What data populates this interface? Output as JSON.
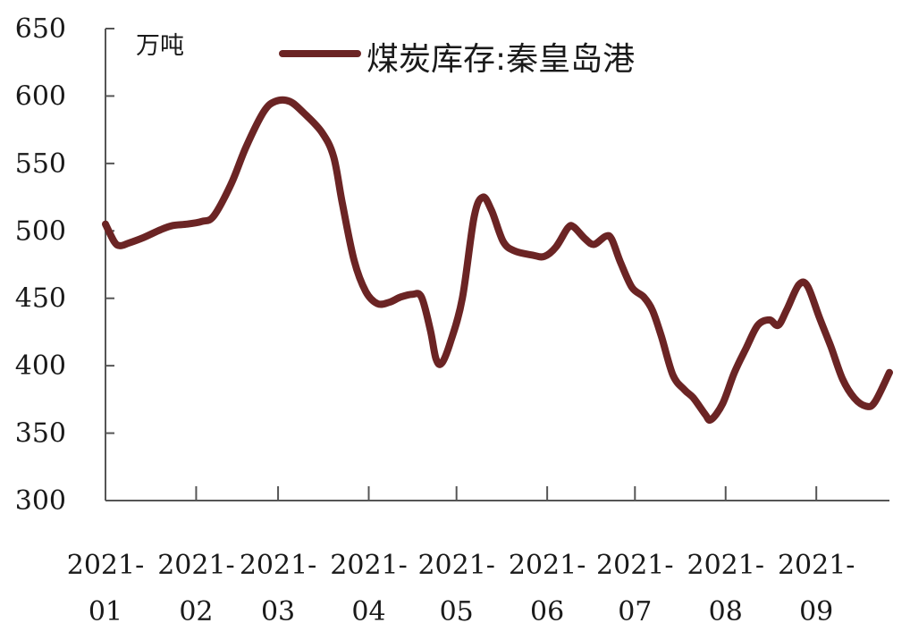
{
  "chart_data": {
    "type": "line",
    "unit": "万吨",
    "ylim": [
      300,
      650
    ],
    "yticks": [
      "300",
      "350",
      "400",
      "450",
      "500",
      "550",
      "600",
      "650"
    ],
    "ytick_values": [
      300,
      350,
      400,
      450,
      500,
      550,
      600,
      650
    ],
    "xlim": [
      "2021-01-01",
      "2021-09-26"
    ],
    "xticks": [
      {
        "date": "2021-01-01",
        "line1": "2021-",
        "line2": "01"
      },
      {
        "date": "2021-02-01",
        "line1": "2021-",
        "line2": "02"
      },
      {
        "date": "2021-03-01",
        "line1": "2021-",
        "line2": "03"
      },
      {
        "date": "2021-04-01",
        "line1": "2021-",
        "line2": "04"
      },
      {
        "date": "2021-05-01",
        "line1": "2021-",
        "line2": "05"
      },
      {
        "date": "2021-06-01",
        "line1": "2021-",
        "line2": "06"
      },
      {
        "date": "2021-07-01",
        "line1": "2021-",
        "line2": "07"
      },
      {
        "date": "2021-08-01",
        "line1": "2021-",
        "line2": "08"
      },
      {
        "date": "2021-09-01",
        "line1": "2021-",
        "line2": "09"
      }
    ],
    "legend_position": "top",
    "grid": false,
    "series": [
      {
        "name": "煤炭库存:秦皇岛港",
        "color": "#6b2424",
        "points": [
          [
            "2021-01-01",
            505
          ],
          [
            "2021-01-04",
            492
          ],
          [
            "2021-01-06",
            489
          ],
          [
            "2021-01-09",
            491
          ],
          [
            "2021-01-14",
            495
          ],
          [
            "2021-01-20",
            501
          ],
          [
            "2021-01-24",
            504
          ],
          [
            "2021-01-29",
            505
          ],
          [
            "2021-02-03",
            507
          ],
          [
            "2021-02-07",
            511
          ],
          [
            "2021-02-13",
            535
          ],
          [
            "2021-02-18",
            562
          ],
          [
            "2021-02-24",
            588
          ],
          [
            "2021-02-28",
            596
          ],
          [
            "2021-03-05",
            596
          ],
          [
            "2021-03-10",
            587
          ],
          [
            "2021-03-16",
            573
          ],
          [
            "2021-03-20",
            555
          ],
          [
            "2021-03-23",
            520
          ],
          [
            "2021-03-27",
            478
          ],
          [
            "2021-03-31",
            455
          ],
          [
            "2021-04-04",
            446
          ],
          [
            "2021-04-08",
            447
          ],
          [
            "2021-04-12",
            451
          ],
          [
            "2021-04-16",
            453
          ],
          [
            "2021-04-19",
            451
          ],
          [
            "2021-04-22",
            427
          ],
          [
            "2021-04-24",
            405
          ],
          [
            "2021-04-26",
            402
          ],
          [
            "2021-04-29",
            418
          ],
          [
            "2021-05-03",
            450
          ],
          [
            "2021-05-07",
            510
          ],
          [
            "2021-05-10",
            525
          ],
          [
            "2021-05-13",
            515
          ],
          [
            "2021-05-17",
            492
          ],
          [
            "2021-05-21",
            485
          ],
          [
            "2021-05-27",
            482
          ],
          [
            "2021-05-31",
            481
          ],
          [
            "2021-06-04",
            488
          ],
          [
            "2021-06-08",
            502
          ],
          [
            "2021-06-10",
            503
          ],
          [
            "2021-06-14",
            494
          ],
          [
            "2021-06-17",
            490
          ],
          [
            "2021-06-21",
            496
          ],
          [
            "2021-06-23",
            494
          ],
          [
            "2021-06-26",
            477
          ],
          [
            "2021-06-30",
            458
          ],
          [
            "2021-07-04",
            451
          ],
          [
            "2021-07-07",
            441
          ],
          [
            "2021-07-10",
            422
          ],
          [
            "2021-07-14",
            393
          ],
          [
            "2021-07-18",
            382
          ],
          [
            "2021-07-21",
            376
          ],
          [
            "2021-07-25",
            364
          ],
          [
            "2021-07-27",
            360
          ],
          [
            "2021-07-31",
            372
          ],
          [
            "2021-08-04",
            395
          ],
          [
            "2021-08-08",
            413
          ],
          [
            "2021-08-12",
            430
          ],
          [
            "2021-08-16",
            434
          ],
          [
            "2021-08-19",
            430
          ],
          [
            "2021-08-22",
            442
          ],
          [
            "2021-08-26",
            460
          ],
          [
            "2021-08-29",
            459
          ],
          [
            "2021-09-02",
            436
          ],
          [
            "2021-09-06",
            414
          ],
          [
            "2021-09-10",
            390
          ],
          [
            "2021-09-14",
            376
          ],
          [
            "2021-09-18",
            370
          ],
          [
            "2021-09-21",
            373
          ],
          [
            "2021-09-26",
            395
          ]
        ]
      }
    ]
  }
}
